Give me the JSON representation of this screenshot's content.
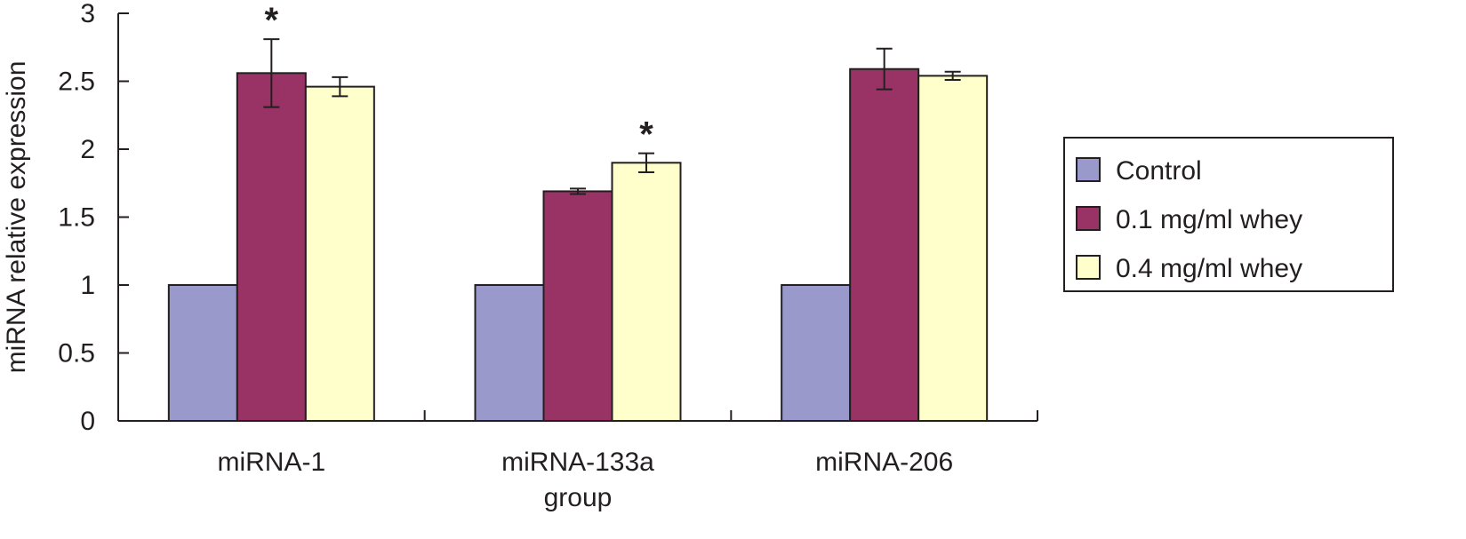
{
  "chart_data": {
    "type": "bar",
    "title": "",
    "xlabel": "group",
    "ylabel": "miRNA relative expression",
    "ylim": [
      0,
      3
    ],
    "yticks": [
      "0",
      "0.5",
      "1",
      "1.5",
      "2",
      "2.5",
      "3"
    ],
    "categories": [
      "miRNA-1",
      "miRNA-133a",
      "miRNA-206"
    ],
    "series": [
      {
        "name": "Control",
        "color": "#9999cc",
        "values": [
          1.0,
          1.0,
          1.0
        ],
        "errors": [
          0,
          0,
          0
        ]
      },
      {
        "name": "0.1 mg/ml whey",
        "color": "#993366",
        "values": [
          2.56,
          1.69,
          2.59
        ],
        "errors": [
          0.25,
          0.02,
          0.15
        ]
      },
      {
        "name": "0.4 mg/ml whey",
        "color": "#ffffcc",
        "values": [
          2.46,
          1.9,
          2.54
        ],
        "errors": [
          0.07,
          0.07,
          0.03
        ]
      }
    ],
    "annotations": [
      {
        "text": "*",
        "category": 0,
        "series": 1
      },
      {
        "text": "*",
        "category": 1,
        "series": 2
      }
    ],
    "legend_position": "right",
    "grid": false
  }
}
